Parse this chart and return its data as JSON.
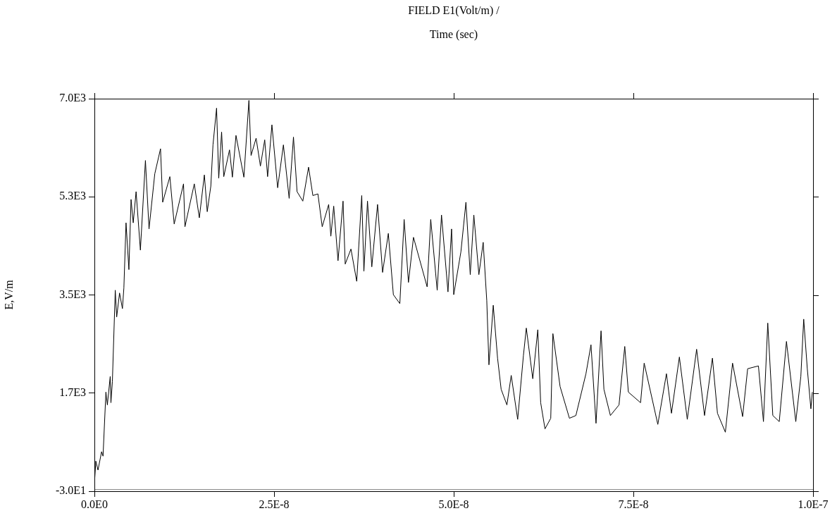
{
  "chart_data": {
    "type": "line",
    "title": "FIELD E1(Volt/m) /",
    "subtitle": "Time (sec)",
    "ylabel": "E,V/m",
    "xlim": [
      0,
      1e-07
    ],
    "xticks": [
      {
        "value": 0,
        "label": "0.0E0"
      },
      {
        "value": 2.5e-08,
        "label": "2.5E-8"
      },
      {
        "value": 5e-08,
        "label": "5.0E-8"
      },
      {
        "value": 7.5e-08,
        "label": "7.5E-8"
      },
      {
        "value": 1e-07,
        "label": "1.0E-7"
      }
    ],
    "ylim": [
      -30,
      7020
    ],
    "yticks": [
      {
        "value": -30,
        "label": "-3.0E1"
      },
      {
        "value": 1732.5,
        "label": "1.7E3"
      },
      {
        "value": 3495,
        "label": "3.5E3"
      },
      {
        "value": 5257.5,
        "label": "5.3E3"
      },
      {
        "value": 7020,
        "label": "7.0E3"
      }
    ],
    "grid": false,
    "legend": false,
    "marker": "none",
    "line_style": "solid",
    "ref_lines": [
      {
        "axis": "y",
        "value": 0,
        "color": "#808080"
      }
    ],
    "series": [
      {
        "color": "#000000",
        "x": [
          0,
          2e-10,
          5e-10,
          1e-09,
          1.2e-09,
          1.6e-09,
          1.8e-09,
          2.2e-09,
          2.3e-09,
          2.5e-09,
          2.9e-09,
          3.1e-09,
          3.5e-09,
          3.9e-09,
          4.1e-09,
          4.4e-09,
          4.8e-09,
          5.1e-09,
          5.4e-09,
          5.8e-09,
          6.4e-09,
          7.1e-09,
          7.6e-09,
          8.4e-09,
          9.2e-09,
          9.5e-09,
          1.05e-08,
          1.11e-08,
          1.24e-08,
          1.26e-08,
          1.39e-08,
          1.46e-08,
          1.53e-08,
          1.57e-08,
          1.62e-08,
          1.65e-08,
          1.7e-08,
          1.73e-08,
          1.77e-08,
          1.8e-08,
          1.88e-08,
          1.92e-08,
          1.97e-08,
          2.08e-08,
          2.15e-08,
          2.18e-08,
          2.25e-08,
          2.31e-08,
          2.37e-08,
          2.41e-08,
          2.47e-08,
          2.55e-08,
          2.63e-08,
          2.71e-08,
          2.77e-08,
          2.82e-08,
          2.9e-08,
          2.98e-08,
          3.04e-08,
          3.11e-08,
          3.17e-08,
          3.26e-08,
          3.29e-08,
          3.33e-08,
          3.39e-08,
          3.46e-08,
          3.49e-08,
          3.57e-08,
          3.65e-08,
          3.72e-08,
          3.75e-08,
          3.8e-08,
          3.86e-08,
          3.94e-08,
          4.01e-08,
          4.09e-08,
          4.16e-08,
          4.25e-08,
          4.31e-08,
          4.37e-08,
          4.44e-08,
          4.63e-08,
          4.68e-08,
          4.77e-08,
          4.83e-08,
          4.92e-08,
          4.97e-08,
          5e-08,
          5.1e-08,
          5.17e-08,
          5.23e-08,
          5.28e-08,
          5.35e-08,
          5.41e-08,
          5.46e-08,
          5.49e-08,
          5.55e-08,
          5.61e-08,
          5.66e-08,
          5.74e-08,
          5.8e-08,
          5.89e-08,
          5.97e-08,
          6.01e-08,
          6.1e-08,
          6.17e-08,
          6.21e-08,
          6.27e-08,
          6.35e-08,
          6.38e-08,
          6.48e-08,
          6.61e-08,
          6.7e-08,
          6.84e-08,
          6.91e-08,
          6.98e-08,
          7.05e-08,
          7.09e-08,
          7.18e-08,
          7.3e-08,
          7.38e-08,
          7.43e-08,
          7.6e-08,
          7.65e-08,
          7.84e-08,
          7.96e-08,
          8.03e-08,
          8.14e-08,
          8.25e-08,
          8.38e-08,
          8.49e-08,
          8.6e-08,
          8.67e-08,
          8.78e-08,
          8.88e-08,
          9.02e-08,
          9.09e-08,
          9.24e-08,
          9.31e-08,
          9.37e-08,
          9.44e-08,
          9.53e-08,
          9.63e-08,
          9.76e-08,
          9.83e-08,
          9.87e-08,
          9.92e-08,
          9.97e-08,
          9.99e-08
        ],
        "values": [
          110,
          510,
          350,
          680,
          600,
          1750,
          1520,
          2030,
          1560,
          1940,
          3580,
          3100,
          3530,
          3250,
          3620,
          4790,
          3950,
          5210,
          4790,
          5350,
          4300,
          5910,
          4680,
          5670,
          6120,
          5160,
          5620,
          4770,
          5490,
          4720,
          5490,
          4880,
          5650,
          4990,
          5450,
          6190,
          6850,
          5590,
          6420,
          5620,
          6100,
          5610,
          6360,
          5610,
          6990,
          6000,
          6310,
          5810,
          6280,
          5620,
          6550,
          5420,
          6190,
          5230,
          6330,
          5350,
          5180,
          5790,
          5280,
          5310,
          4720,
          5120,
          4550,
          5090,
          4110,
          5180,
          4050,
          4320,
          3740,
          5280,
          3920,
          5180,
          4000,
          5120,
          3900,
          4600,
          3500,
          3340,
          4850,
          3720,
          4530,
          3640,
          4850,
          3580,
          4930,
          3550,
          4680,
          3500,
          4270,
          5160,
          3860,
          4930,
          3860,
          4440,
          3390,
          2240,
          3310,
          2360,
          1800,
          1520,
          2050,
          1260,
          2410,
          2900,
          1990,
          2870,
          1560,
          1090,
          1280,
          2800,
          1850,
          1280,
          1330,
          2080,
          2600,
          1190,
          2850,
          1800,
          1330,
          1520,
          2570,
          1750,
          1560,
          2270,
          1170,
          2080,
          1370,
          2380,
          1260,
          2520,
          1330,
          2360,
          1370,
          1030,
          2270,
          1310,
          2170,
          2220,
          1220,
          2990,
          1330,
          1220,
          2660,
          1220,
          2030,
          3060,
          2170,
          1450,
          1750
        ]
      }
    ]
  }
}
